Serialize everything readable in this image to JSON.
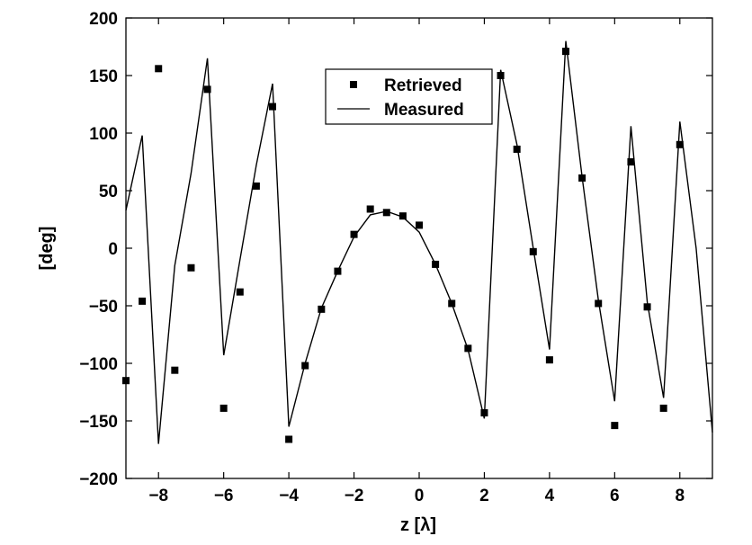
{
  "chart_data": {
    "type": "line",
    "xlabel": "z [λ]",
    "ylabel": "[deg]",
    "xlim": [
      -9,
      9
    ],
    "ylim": [
      -200,
      200
    ],
    "xticks": [
      -8,
      -6,
      -4,
      -2,
      0,
      2,
      4,
      6,
      8
    ],
    "yticks": [
      -200,
      -150,
      -100,
      -50,
      0,
      50,
      100,
      150,
      200
    ],
    "xtick_labels": [
      "−8",
      "−6",
      "−4",
      "−2",
      "0",
      "2",
      "4",
      "6",
      "8"
    ],
    "ytick_labels": [
      "−200",
      "−150",
      "−100",
      "−50",
      "0",
      "50",
      "100",
      "150",
      "200"
    ],
    "grid": false,
    "legend_position": "top-center",
    "series": [
      {
        "name": "Retrieved",
        "style": "markers",
        "marker": "square",
        "color": "#000000",
        "x": [
          -9,
          -8.5,
          -8,
          -7.5,
          -7,
          -6.5,
          -6,
          -5.5,
          -5,
          -4.5,
          -4,
          -3.5,
          -3,
          -2.5,
          -2,
          -1.5,
          -1,
          -0.5,
          0,
          0.5,
          1,
          1.5,
          2,
          2.5,
          3,
          3.5,
          4,
          4.5,
          5,
          5.5,
          6,
          6.5,
          7,
          7.5,
          8
        ],
        "y": [
          -115,
          -46,
          156,
          -106,
          -17,
          138,
          -139,
          -38,
          54,
          123,
          -166,
          -102,
          -53,
          -20,
          12,
          34,
          31,
          28,
          20,
          -14,
          -48,
          -87,
          -143,
          150,
          86,
          -3,
          -97,
          171,
          61,
          -48,
          -154,
          75,
          -51,
          -139,
          90
        ]
      },
      {
        "name": "Measured",
        "style": "line",
        "color": "#000000",
        "x": [
          -9,
          -8.5,
          -8,
          -7.5,
          -7,
          -6.5,
          -6,
          -5.5,
          -5,
          -4.5,
          -4,
          -3.5,
          -3,
          -2.5,
          -2,
          -1.5,
          -1,
          -0.5,
          0,
          0.5,
          1,
          1.5,
          2,
          2.5,
          3,
          3.5,
          4,
          4.5,
          5,
          5.5,
          6,
          6.5,
          7,
          7.5,
          8,
          8.5,
          9
        ],
        "y": [
          33,
          98,
          -170,
          -15,
          65,
          165,
          -93,
          -10,
          72,
          143,
          -155,
          -100,
          -52,
          -20,
          10,
          29,
          32,
          27,
          14,
          -14,
          -48,
          -88,
          -148,
          155,
          90,
          0,
          -88,
          180,
          62,
          -45,
          -133,
          106,
          -47,
          -130,
          110,
          0,
          -160
        ]
      }
    ]
  }
}
